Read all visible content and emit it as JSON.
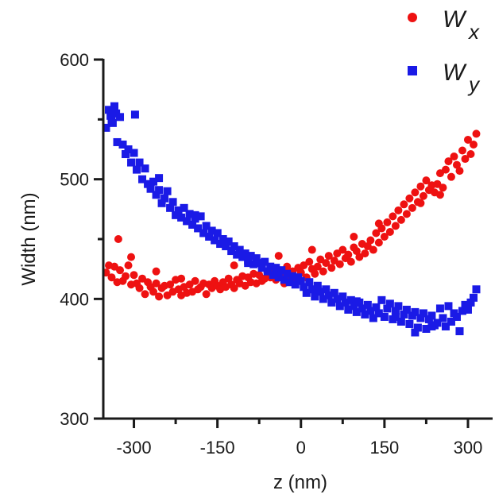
{
  "chart_data": {
    "type": "scatter",
    "title": "",
    "xlabel": "z (nm)",
    "ylabel": "Width (nm)",
    "xlim": [
      -355,
      330
    ],
    "ylim": [
      300,
      600
    ],
    "xticks": [
      -300,
      -150,
      0,
      150,
      300
    ],
    "xtick_labels": [
      "-300",
      "-150",
      "0",
      "150",
      "300"
    ],
    "yticks": [
      300,
      400,
      500,
      600
    ],
    "ytick_labels": [
      "300",
      "400",
      "500",
      "600"
    ],
    "legend_position": "top-right",
    "grid": false,
    "series": [
      {
        "name_main": "W",
        "name_sub": "x",
        "color": "#ee1111",
        "marker": "circle",
        "x": [
          -350,
          -345,
          -340,
          -335,
          -330,
          -325,
          -320,
          -315,
          -310,
          -305,
          -300,
          -295,
          -290,
          -285,
          -280,
          -275,
          -270,
          -265,
          -260,
          -255,
          -250,
          -245,
          -240,
          -235,
          -230,
          -225,
          -220,
          -215,
          -210,
          -205,
          -200,
          -195,
          -190,
          -185,
          -180,
          -175,
          -170,
          -165,
          -160,
          -155,
          -150,
          -145,
          -140,
          -135,
          -130,
          -125,
          -120,
          -115,
          -110,
          -105,
          -100,
          -95,
          -90,
          -85,
          -80,
          -75,
          -70,
          -65,
          -60,
          -55,
          -50,
          -45,
          -40,
          -35,
          -30,
          -25,
          -20,
          -15,
          -10,
          -5,
          0,
          5,
          10,
          15,
          20,
          25,
          30,
          35,
          40,
          45,
          50,
          55,
          60,
          65,
          70,
          75,
          80,
          85,
          90,
          95,
          100,
          105,
          110,
          115,
          120,
          125,
          130,
          135,
          140,
          145,
          150,
          155,
          160,
          165,
          170,
          175,
          180,
          185,
          190,
          195,
          200,
          205,
          210,
          215,
          220,
          225,
          230,
          235,
          240,
          245,
          250,
          255,
          260,
          265,
          270,
          275,
          280,
          285,
          290,
          295,
          300,
          305,
          310,
          315,
          -328,
          -305,
          -260,
          -215,
          -120,
          -40,
          20,
          95,
          140,
          215,
          250
        ],
        "y": [
          422,
          428,
          418,
          427,
          414,
          424,
          415,
          419,
          428,
          412,
          420,
          413,
          409,
          417,
          404,
          414,
          410,
          406,
          413,
          402,
          409,
          411,
          403,
          412,
          406,
          416,
          408,
          403,
          410,
          405,
          412,
          406,
          415,
          408,
          410,
          413,
          404,
          412,
          409,
          415,
          411,
          408,
          414,
          410,
          417,
          412,
          409,
          416,
          413,
          419,
          411,
          418,
          414,
          421,
          413,
          420,
          415,
          417,
          422,
          418,
          425,
          416,
          424,
          420,
          413,
          427,
          419,
          423,
          417,
          426,
          422,
          428,
          418,
          431,
          425,
          421,
          427,
          433,
          423,
          430,
          436,
          426,
          432,
          438,
          429,
          441,
          434,
          437,
          431,
          443,
          440,
          435,
          446,
          438,
          444,
          449,
          441,
          455,
          447,
          459,
          452,
          464,
          456,
          469,
          461,
          474,
          466,
          479,
          471,
          484,
          476,
          489,
          481,
          494,
          486,
          499,
          491,
          495,
          489,
          496,
          505,
          493,
          508,
          515,
          502,
          519,
          512,
          507,
          524,
          517,
          533,
          521,
          529,
          538,
          450,
          435,
          423,
          417,
          428,
          436,
          441,
          452,
          463,
          480,
          487
        ]
      },
      {
        "name_main": "W",
        "name_sub": "y",
        "color": "#1a1ae6",
        "marker": "square",
        "x": [
          -350,
          -345,
          -340,
          -335,
          -330,
          -325,
          -320,
          -315,
          -310,
          -305,
          -300,
          -295,
          -290,
          -285,
          -280,
          -275,
          -270,
          -265,
          -260,
          -255,
          -250,
          -245,
          -240,
          -235,
          -230,
          -225,
          -220,
          -215,
          -210,
          -205,
          -200,
          -195,
          -190,
          -185,
          -180,
          -175,
          -170,
          -165,
          -160,
          -155,
          -150,
          -145,
          -140,
          -135,
          -130,
          -125,
          -120,
          -115,
          -110,
          -105,
          -100,
          -95,
          -90,
          -85,
          -80,
          -75,
          -70,
          -65,
          -60,
          -55,
          -50,
          -45,
          -40,
          -35,
          -30,
          -25,
          -20,
          -15,
          -10,
          -5,
          0,
          5,
          10,
          15,
          20,
          25,
          30,
          35,
          40,
          45,
          50,
          55,
          60,
          65,
          70,
          75,
          80,
          85,
          90,
          95,
          100,
          105,
          110,
          115,
          120,
          125,
          130,
          135,
          140,
          145,
          150,
          155,
          160,
          165,
          170,
          175,
          180,
          185,
          190,
          195,
          200,
          205,
          210,
          215,
          220,
          225,
          230,
          235,
          240,
          245,
          250,
          255,
          260,
          265,
          270,
          275,
          280,
          285,
          290,
          295,
          300,
          305,
          310,
          315,
          -342,
          -338,
          -332,
          -298,
          -255,
          -190,
          -150,
          -95,
          -40,
          30,
          100,
          170,
          205,
          235,
          285
        ],
        "y": [
          543,
          558,
          549,
          561,
          531,
          552,
          529,
          521,
          525,
          514,
          522,
          508,
          514,
          500,
          509,
          496,
          492,
          498,
          487,
          491,
          480,
          484,
          490,
          476,
          481,
          470,
          474,
          468,
          476,
          465,
          471,
          462,
          467,
          459,
          469,
          455,
          461,
          452,
          457,
          449,
          455,
          446,
          450,
          444,
          448,
          440,
          444,
          437,
          441,
          435,
          438,
          432,
          436,
          429,
          434,
          430,
          426,
          431,
          423,
          427,
          420,
          426,
          418,
          424,
          416,
          421,
          414,
          419,
          412,
          418,
          415,
          410,
          405,
          414,
          408,
          402,
          411,
          406,
          400,
          408,
          403,
          397,
          405,
          400,
          394,
          402,
          397,
          391,
          399,
          394,
          389,
          397,
          392,
          387,
          395,
          390,
          384,
          393,
          388,
          399,
          385,
          392,
          396,
          383,
          390,
          394,
          381,
          387,
          391,
          379,
          386,
          389,
          376,
          384,
          388,
          375,
          383,
          386,
          378,
          380,
          392,
          384,
          377,
          394,
          381,
          388,
          385,
          373,
          390,
          395,
          391,
          397,
          401,
          408,
          553,
          547,
          555,
          554,
          501,
          470,
          455,
          430,
          420,
          408,
          398,
          385,
          372,
          377,
          373
        ]
      }
    ]
  }
}
